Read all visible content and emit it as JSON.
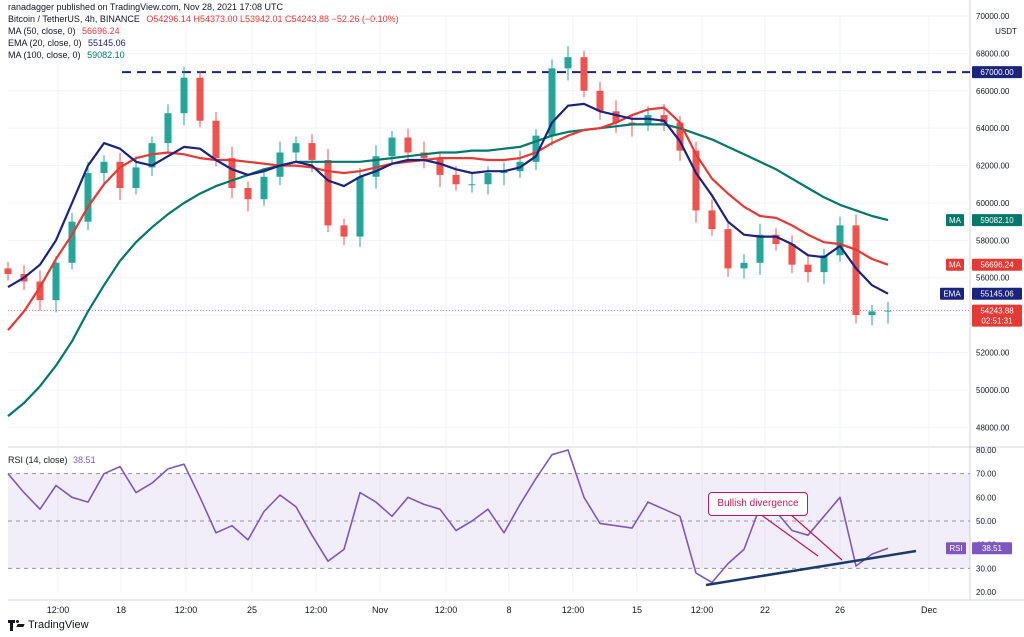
{
  "publisher": "ranadagger published on TradingView.com, Nov 28, 2021 17:08 UTC",
  "symbol_line": {
    "title": "Bitcoin / TetherUS, 4h, BINANCE",
    "ohlc": "O54296.14 H54373.00 L53942.01 C54243.88 −52.26 (−0.10%)"
  },
  "indicators": [
    {
      "label": "MA (50, close, 0)",
      "value": "56696.24",
      "color": "#e53935"
    },
    {
      "label": "EMA (20, close, 0)",
      "value": "55145.06",
      "color": "#1a237e"
    },
    {
      "label": "MA (100, close, 0)",
      "value": "59082.10",
      "color": "#00796b"
    }
  ],
  "rsi_header": {
    "label": "RSI (14, close)",
    "value": "38.51",
    "color": "#7e57c2"
  },
  "annotation": "Bullish divergence",
  "logo_text": "TradingView",
  "price_tags": [
    {
      "text": "67000.00",
      "value": 67000,
      "color": "#1a237e"
    },
    {
      "text": "59082.10",
      "value": 59082.1,
      "color": "#00796b",
      "prefix": "MA"
    },
    {
      "text": "56696.24",
      "value": 56696.24,
      "color": "#e53935",
      "prefix": "MA"
    },
    {
      "text": "55145.06",
      "value": 55145.06,
      "color": "#1a237e",
      "prefix": "EMA"
    },
    {
      "text": "54243.88",
      "value": 54243.88,
      "color": "#e53935",
      "sub": "02:51:31"
    }
  ],
  "rsi_tag": {
    "prefix": "RSI",
    "text": "38.51",
    "value": 38.51,
    "color": "#7e57c2"
  },
  "chart_data": {
    "type": "line",
    "title": "Bitcoin / TetherUS, 4h, BINANCE",
    "currency": "USDT",
    "ylim": [
      47000,
      70000
    ],
    "y_ticks": [
      48000,
      50000,
      52000,
      54000,
      56000,
      58000,
      60000,
      62000,
      64000,
      66000,
      68000,
      70000
    ],
    "x_ticks": [
      "12:00",
      "18",
      "12:00",
      "25",
      "12:00",
      "Nov",
      "12:00",
      "8",
      "12:00",
      "15",
      "12:00",
      "22",
      "26",
      "Dec"
    ],
    "horizontal_line": 67000,
    "series": [
      {
        "name": "Price",
        "color": "#26a69a",
        "values": [
          56200,
          55800,
          54800,
          56800,
          59000,
          61600,
          62200,
          60800,
          61900,
          63200,
          64800,
          66700,
          64400,
          62400,
          60800,
          60200,
          61400,
          62700,
          63200,
          62300,
          58800,
          58200,
          61400,
          62500,
          63500,
          62700,
          62400,
          61500,
          61000,
          61000,
          61600,
          61700,
          62200,
          63600,
          67200,
          67800,
          66000,
          64900,
          64300,
          64200,
          64700,
          64300,
          62800,
          59600,
          58600,
          56500,
          56800,
          58300,
          57800,
          56700,
          56300,
          57200,
          58800,
          54000,
          54200,
          54243.88
        ]
      },
      {
        "name": "EMA (20, close, 0)",
        "color": "#1a237e",
        "values": [
          55500,
          56000,
          56700,
          58000,
          60000,
          62000,
          63200,
          62900,
          62200,
          62000,
          62500,
          63000,
          62900,
          62300,
          61800,
          61500,
          61700,
          62000,
          62200,
          62000,
          61200,
          60900,
          61400,
          61700,
          62100,
          62300,
          62300,
          62100,
          61800,
          61600,
          61700,
          61700,
          61900,
          62500,
          64300,
          65200,
          65300,
          64900,
          64700,
          64500,
          64500,
          64400,
          63300,
          61600,
          60400,
          59000,
          58300,
          58200,
          58200,
          57800,
          57200,
          57100,
          57700,
          56500,
          55600,
          55145.06
        ]
      },
      {
        "name": "MA (50, close, 0)",
        "color": "#e53935",
        "values": [
          53200,
          54200,
          55500,
          57000,
          58300,
          59800,
          61000,
          61900,
          62400,
          62600,
          62700,
          62600,
          62400,
          62300,
          62300,
          62200,
          62100,
          62000,
          62000,
          61900,
          61700,
          61600,
          61700,
          61900,
          62100,
          62200,
          62300,
          62400,
          62400,
          62400,
          62300,
          62300,
          62400,
          62700,
          63200,
          63600,
          63900,
          64000,
          64300,
          64700,
          65000,
          65100,
          64300,
          62600,
          61300,
          60500,
          59800,
          59300,
          59200,
          58800,
          58300,
          57900,
          57800,
          57500,
          57000,
          56696.24
        ]
      },
      {
        "name": "MA (100, close, 0)",
        "color": "#00796b",
        "values": [
          48600,
          49300,
          50200,
          51300,
          52600,
          54200,
          55600,
          56900,
          57900,
          58700,
          59400,
          60000,
          60500,
          60900,
          61200,
          61500,
          61800,
          62000,
          62200,
          62200,
          62200,
          62200,
          62200,
          62300,
          62400,
          62500,
          62600,
          62700,
          62700,
          62800,
          62800,
          62900,
          63000,
          63300,
          63600,
          63800,
          63900,
          64000,
          64100,
          64200,
          64200,
          64200,
          64000,
          63700,
          63400,
          63000,
          62600,
          62200,
          61800,
          61300,
          60800,
          60300,
          59900,
          59600,
          59300,
          59082.1
        ]
      },
      {
        "name": "RSI (14, close)",
        "color": "#7e57c2",
        "ylim": [
          20,
          80
        ],
        "values": [
          70,
          62,
          55,
          65,
          60,
          58,
          70,
          73,
          62,
          66,
          72,
          74,
          60,
          45,
          48,
          42,
          54,
          61,
          56,
          44,
          33,
          38,
          62,
          58,
          52,
          60,
          57,
          55,
          46,
          50,
          55,
          45,
          57,
          68,
          78,
          80,
          60,
          49,
          48,
          47,
          58,
          55,
          52,
          28,
          24,
          32,
          38,
          56,
          54,
          46,
          44,
          52,
          60,
          31,
          36,
          38.51
        ]
      }
    ],
    "rsi_ticks": [
      20,
      30,
      40,
      50,
      60,
      70,
      80
    ],
    "rsi_band": [
      30,
      70
    ]
  }
}
